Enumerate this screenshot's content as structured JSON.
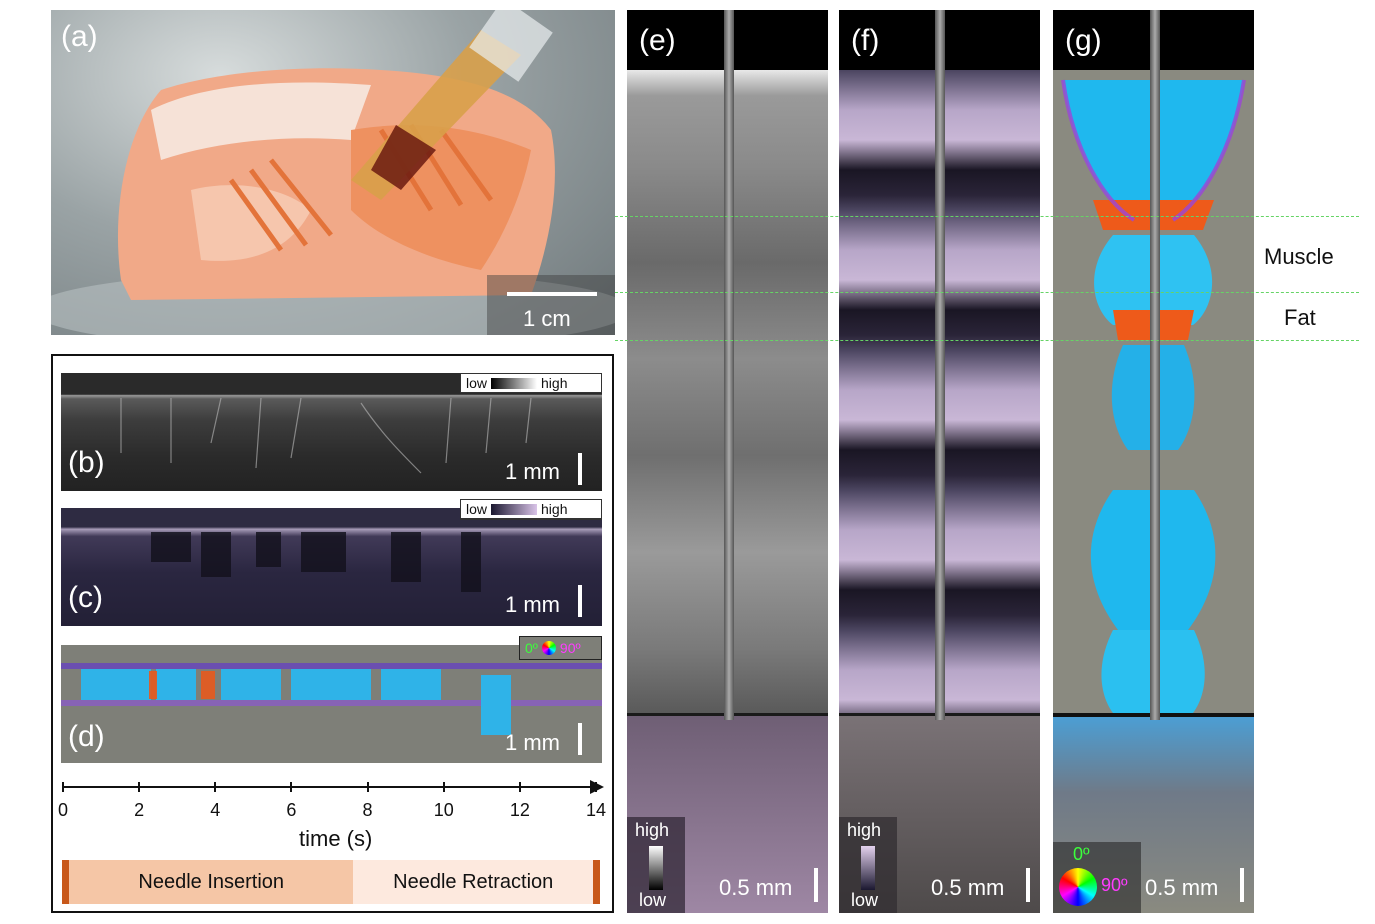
{
  "panels": {
    "a": {
      "letter": "(a)",
      "scale_label": "1 cm"
    },
    "b": {
      "letter": "(b)",
      "scale_label": "1 mm",
      "legend_low": "low",
      "legend_high": "high"
    },
    "c": {
      "letter": "(c)",
      "scale_label": "1 mm",
      "legend_low": "low",
      "legend_high": "high"
    },
    "d": {
      "letter": "(d)",
      "scale_label": "1 mm",
      "legend_0": "0º",
      "legend_90": "90º"
    },
    "e": {
      "letter": "(e)",
      "scale_label": "0.5 mm",
      "legend_high": "high",
      "legend_low": "low"
    },
    "f": {
      "letter": "(f)",
      "scale_label": "0.5 mm",
      "legend_high": "high",
      "legend_low": "low"
    },
    "g": {
      "letter": "(g)",
      "scale_label": "0.5 mm",
      "legend_0": "0º",
      "legend_90": "90º"
    }
  },
  "time_axis": {
    "label": "time (s)",
    "ticks": [
      "0",
      "2",
      "4",
      "6",
      "8",
      "10",
      "12",
      "14"
    ],
    "range": [
      0,
      14
    ]
  },
  "phases": [
    {
      "label": "Needle Insertion",
      "start": 0,
      "end": 7.6,
      "color": "#f5c6a6"
    },
    {
      "label": "Needle Retraction",
      "start": 7.6,
      "end": 14,
      "color": "#fde9de"
    }
  ],
  "tissue_labels": {
    "muscle": "Muscle",
    "fat": "Fat"
  },
  "colors": {
    "end_marker": "#c8581a",
    "guide_line": "#66d466"
  }
}
